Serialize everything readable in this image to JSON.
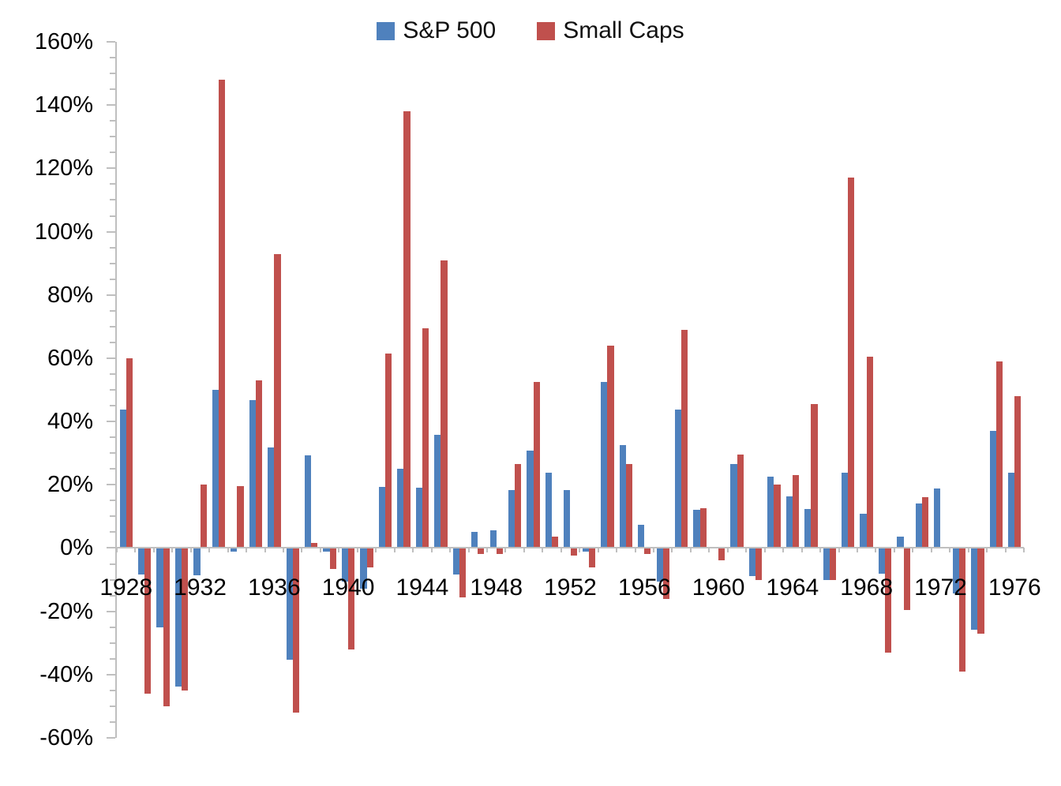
{
  "legend": {
    "items": [
      {
        "label": "S&P 500",
        "color": "#4F81BD"
      },
      {
        "label": "Small Caps",
        "color": "#C0504D"
      }
    ]
  },
  "chart_data": {
    "type": "bar",
    "title": "",
    "xlabel": "",
    "ylabel": "",
    "categories": [
      1928,
      1929,
      1930,
      1931,
      1932,
      1933,
      1934,
      1935,
      1936,
      1937,
      1938,
      1939,
      1940,
      1941,
      1942,
      1943,
      1944,
      1945,
      1946,
      1947,
      1948,
      1949,
      1950,
      1951,
      1952,
      1953,
      1954,
      1955,
      1956,
      1957,
      1958,
      1959,
      1960,
      1961,
      1962,
      1963,
      1964,
      1965,
      1966,
      1967,
      1968,
      1969,
      1970,
      1971,
      1972,
      1973,
      1974,
      1975,
      1976
    ],
    "series": [
      {
        "name": "S&P 500",
        "color": "#4F81BD",
        "values": [
          43.8,
          -8.3,
          -25.1,
          -43.8,
          -8.6,
          50.0,
          -1.2,
          46.7,
          31.9,
          -35.3,
          29.3,
          -1.1,
          -10.7,
          -12.8,
          19.2,
          25.1,
          19.0,
          35.8,
          -8.4,
          5.2,
          5.7,
          18.3,
          30.8,
          23.7,
          18.2,
          -1.2,
          52.6,
          32.6,
          7.4,
          -10.5,
          43.7,
          12.1,
          0.3,
          26.6,
          -8.8,
          22.6,
          16.4,
          12.4,
          -10.0,
          23.8,
          10.8,
          -8.2,
          3.6,
          14.2,
          18.8,
          -14.3,
          -25.9,
          37.0,
          23.8
        ]
      },
      {
        "name": "Small Caps",
        "color": "#C0504D",
        "values": [
          60,
          -46,
          -50,
          -45,
          20,
          148,
          19.5,
          53,
          93,
          -52,
          1.5,
          -6.5,
          -32,
          -6,
          61.5,
          138,
          69.5,
          91,
          -15.5,
          -2,
          -2,
          26.5,
          52.5,
          3.5,
          -2.5,
          -6,
          64,
          26.5,
          -2,
          -16,
          69,
          12.5,
          -4,
          29.5,
          -10,
          20,
          23,
          45.5,
          -10,
          117,
          60.5,
          -33,
          -19.5,
          16,
          0,
          -39,
          -27,
          59,
          48
        ]
      }
    ],
    "ylim": [
      -60,
      160
    ],
    "y_major_unit": 20,
    "y_minor_unit": 5,
    "y_tick_labels": [
      "160%",
      "140%",
      "120%",
      "100%",
      "80%",
      "60%",
      "40%",
      "20%",
      "0%",
      "-20%",
      "-40%",
      "-60%"
    ],
    "x_tick_labels": [
      "1928",
      "1932",
      "1936",
      "1940",
      "1944",
      "1948",
      "1952",
      "1956",
      "1960",
      "1964",
      "1968",
      "1972",
      "1976"
    ],
    "x_label_interval": 4,
    "grid": false,
    "legend_position": "top-center",
    "axis_color": "#bfbfbf",
    "text_color": "#000000"
  }
}
